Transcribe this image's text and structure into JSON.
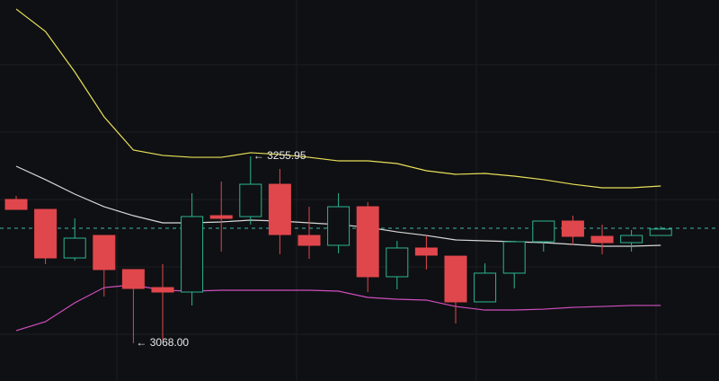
{
  "chart_data": {
    "type": "candlestick",
    "up_color": "#2bb594",
    "down_color": "#e0474c",
    "open": [
      3212.6,
      3202.6,
      3153.8,
      3176.4,
      3142.1,
      3124.0,
      3119.5,
      3196.3,
      3195.4,
      3227.9,
      3176.4,
      3166.5,
      3205.3,
      3134.9,
      3163.8,
      3155.6,
      3109.6,
      3138.5,
      3170.1,
      3190.9,
      3175.5,
      3169.2,
      3176.4
    ],
    "high": [
      3216.2,
      3202.6,
      3193.6,
      3176.4,
      3142.1,
      3147.5,
      3218.9,
      3230.6,
      3255.95,
      3243.3,
      3205.3,
      3218.9,
      3209.9,
      3171.0,
      3176.4,
      3155.6,
      3148.4,
      3171.0,
      3190.9,
      3196.3,
      3187.3,
      3181.9,
      3185.5
    ],
    "low": [
      3202.6,
      3147.5,
      3151.1,
      3115.0,
      3068.0,
      3071.6,
      3106.0,
      3160.2,
      3187.3,
      3157.5,
      3152.9,
      3158.4,
      3119.5,
      3122.2,
      3142.1,
      3087.9,
      3109.6,
      3123.1,
      3160.2,
      3166.5,
      3157.5,
      3160.2,
      3176.4
    ],
    "close": [
      3202.6,
      3153.8,
      3173.7,
      3142.1,
      3123.1,
      3119.5,
      3195.4,
      3193.6,
      3227.9,
      3177.3,
      3166.5,
      3205.3,
      3134.9,
      3163.8,
      3156.6,
      3109.6,
      3138.5,
      3170.1,
      3190.9,
      3175.5,
      3169.2,
      3176.4,
      3182.8
    ],
    "bands": [
      {
        "color": "#e8e05a",
        "values": [
          3404.1,
          3381.5,
          3340.9,
          3295.7,
          3262.3,
          3256.9,
          3255.0,
          3255.0,
          3259.6,
          3257.8,
          3255.0,
          3251.4,
          3251.4,
          3248.7,
          3241.5,
          3237.9,
          3238.8,
          3236.1,
          3232.5,
          3227.9,
          3224.3,
          3224.3,
          3226.1
        ]
      },
      {
        "color": "#d8d8d8",
        "values": [
          3246.0,
          3232.5,
          3218.0,
          3205.3,
          3196.3,
          3189.1,
          3189.1,
          3190.0,
          3191.8,
          3190.9,
          3189.1,
          3187.3,
          3184.6,
          3180.0,
          3176.4,
          3171.9,
          3171.0,
          3170.1,
          3169.2,
          3167.4,
          3165.6,
          3165.6,
          3166.5
        ]
      },
      {
        "color": "#d04fc0",
        "values": [
          3080.7,
          3089.7,
          3108.7,
          3124.0,
          3126.7,
          3121.3,
          3120.4,
          3121.3,
          3121.3,
          3121.3,
          3121.3,
          3120.4,
          3114.1,
          3112.3,
          3111.4,
          3105.0,
          3101.4,
          3101.4,
          3102.3,
          3104.1,
          3105.0,
          3106.0,
          3106.0
        ]
      }
    ],
    "price_line": {
      "value": 3183.7,
      "color": "#3fb8a8"
    },
    "annotations": {
      "max_label": "← 3255.95",
      "min_label": "← 3068.00"
    }
  }
}
